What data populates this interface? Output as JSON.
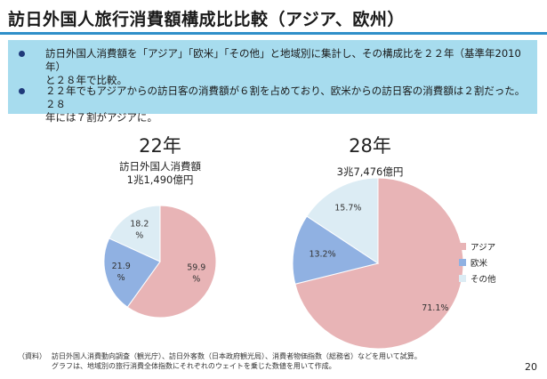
{
  "header": {
    "title": "訪日外国人旅行消費額構成比比較（アジア、欧州）"
  },
  "summary": {
    "bullet_1": "訪日外国人消費額を「アジア」「欧米」「その他」と地域別に集計し、その構成比を２２年（基準年2010年）\nと２８年で比較。",
    "bullet_2": "２２年でもアジアからの訪日客の消費額が６割を占めており、欧米からの訪日客の消費額は２割だった。２８\n年には７割がアジアに。"
  },
  "charts": {
    "left": {
      "year_label": "22年",
      "subtitle_1": "訪日外国人消費額",
      "subtitle_2": "1兆1,490億円",
      "label_asia": "59.9\n%",
      "label_west": "21.9\n%",
      "label_other": "18.2\n%"
    },
    "right": {
      "year_label": "28年",
      "subtitle_1": "3兆7,476億円",
      "label_asia": "71.1%",
      "label_west": "13.2%",
      "label_other": "15.7%"
    }
  },
  "legend": {
    "asia": "アジア",
    "west": "欧米",
    "other": "その他"
  },
  "colors": {
    "asia": "#e8b4b6",
    "west": "#90b1e2",
    "other": "#dcecf4",
    "title_rule": "#2f8fc9",
    "summary_bg": "#a7dcee"
  },
  "chart_data": [
    {
      "type": "pie",
      "title": "22年",
      "categories": [
        "アジア",
        "欧米",
        "その他"
      ],
      "values": [
        59.9,
        21.9,
        18.2
      ],
      "unit": "%",
      "total": "1兆1,490億円"
    },
    {
      "type": "pie",
      "title": "28年",
      "categories": [
        "アジア",
        "欧米",
        "その他"
      ],
      "values": [
        71.1,
        13.2,
        15.7
      ],
      "unit": "%",
      "total": "3兆7,476億円"
    }
  ],
  "footnote": {
    "label": "（資料）",
    "line_1": "訪日外国人消費動向調査（観光庁）、訪日外客数（日本政府観光局）、消費者物価指数（総務省）などを用いて試算。",
    "line_2": "グラフは、地域別の旅行消費全体指数にそれぞれのウェイトを乗じた数値を用いて作成。"
  },
  "page_number": "20"
}
